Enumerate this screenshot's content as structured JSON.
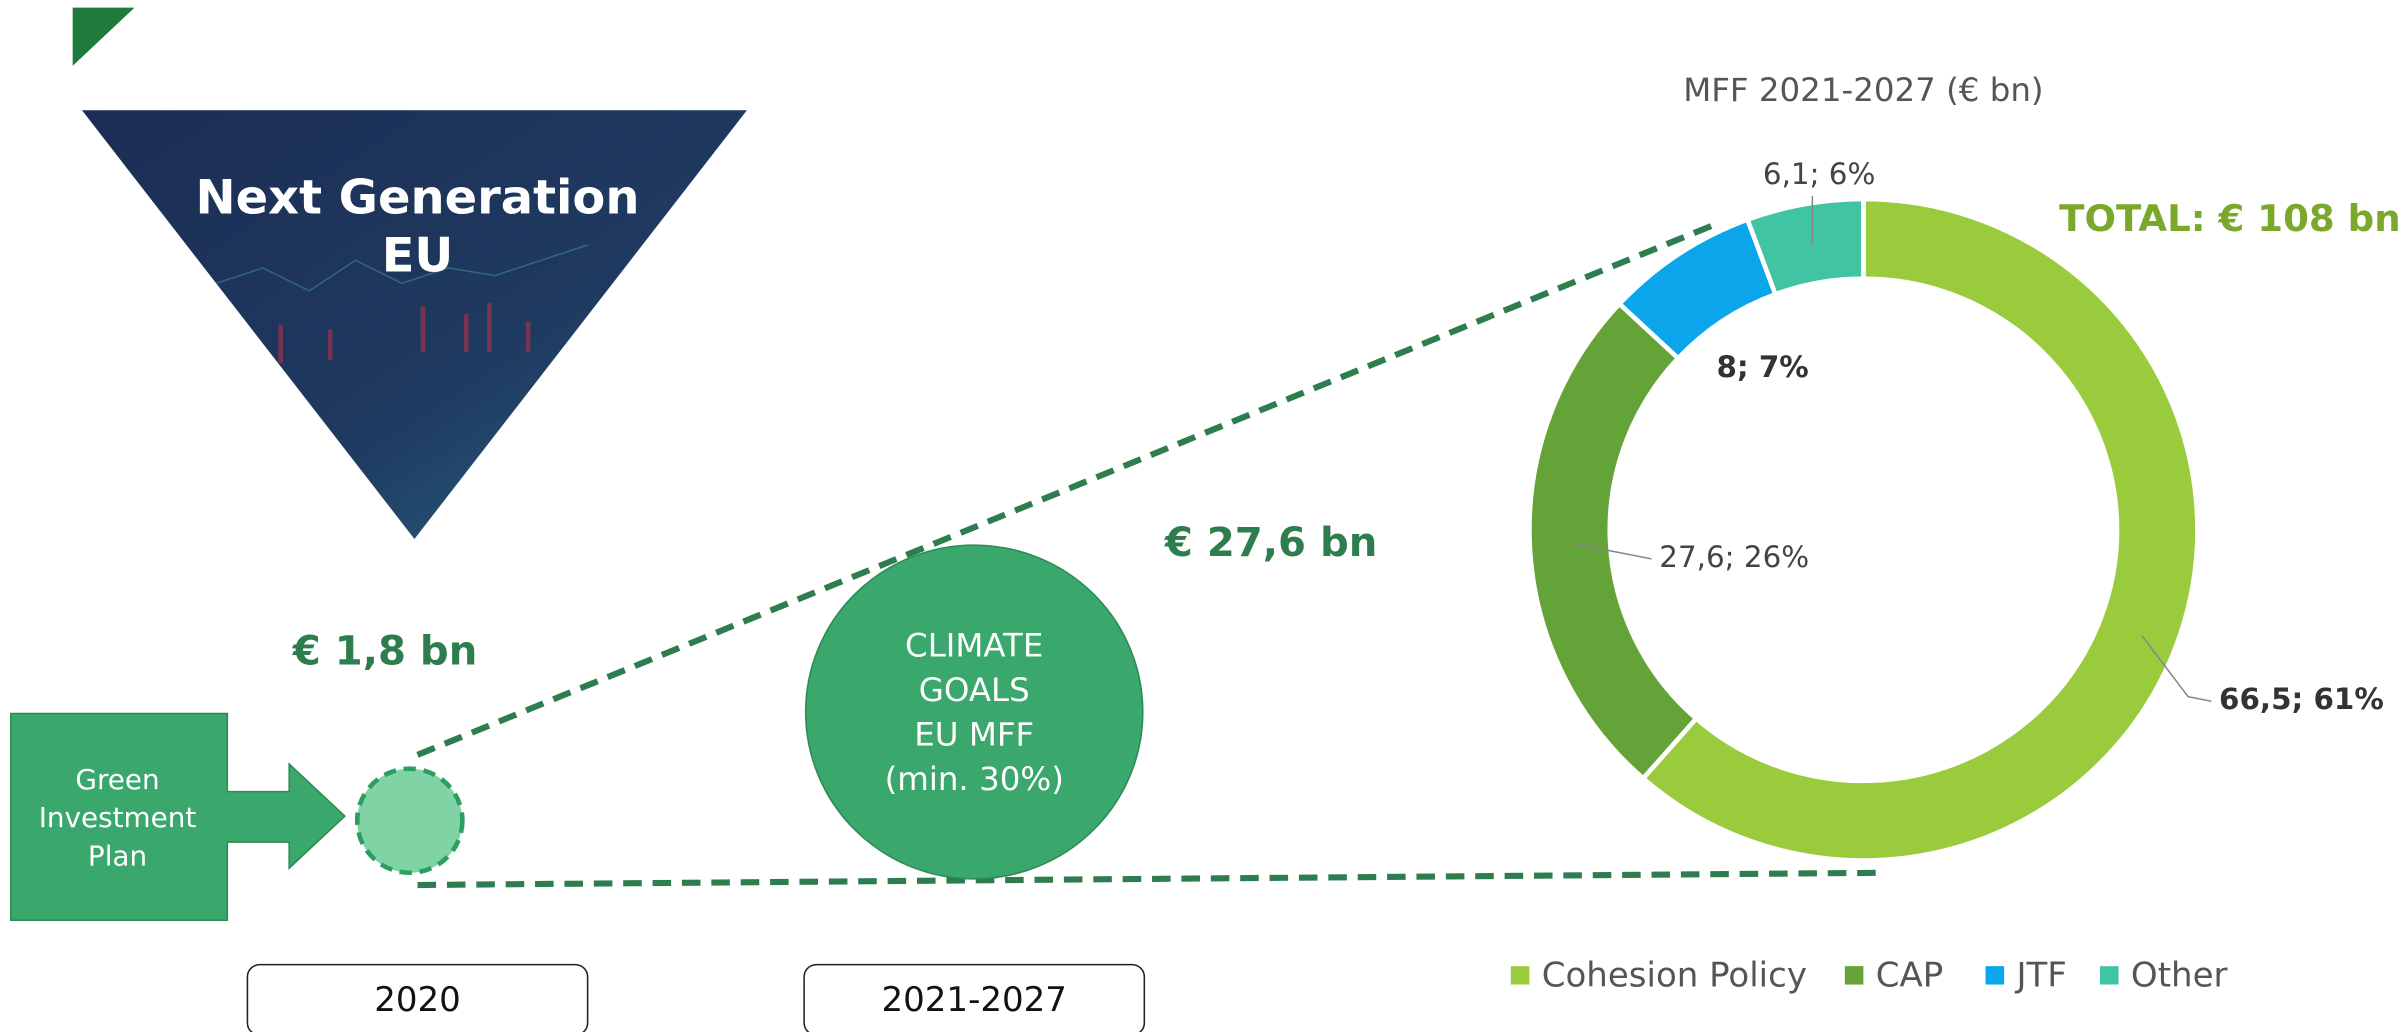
{
  "slide": {
    "banner_title": [
      "Next Generation",
      "EU"
    ],
    "arrow_text": [
      "Green",
      "Investment",
      "Plan"
    ],
    "small_amount": "€ 1,8 bn",
    "large_amount": "€ 27,6 bn",
    "circle_text": [
      "CLIMATE",
      "GOALS",
      "EU MFF",
      "(min. 30%)"
    ],
    "periods": [
      "2020",
      "2021-2027"
    ]
  },
  "chart_data": {
    "type": "pie",
    "donut": true,
    "title": "MFF 2021-2027 (€ bn)",
    "annotation": "TOTAL: € 108 bn",
    "categories": [
      "Cohesion Policy",
      "CAP",
      "JTF",
      "Other"
    ],
    "values": [
      66.5,
      27.6,
      8,
      6.1
    ],
    "value_labels": [
      "66,5; 61%",
      "27,6; 26%",
      "8; 7%",
      "6,1; 6%"
    ],
    "colors": [
      "#9acb3c",
      "#63a337",
      "#0ba5ec",
      "#41c4a4"
    ],
    "legend": "bottom"
  }
}
